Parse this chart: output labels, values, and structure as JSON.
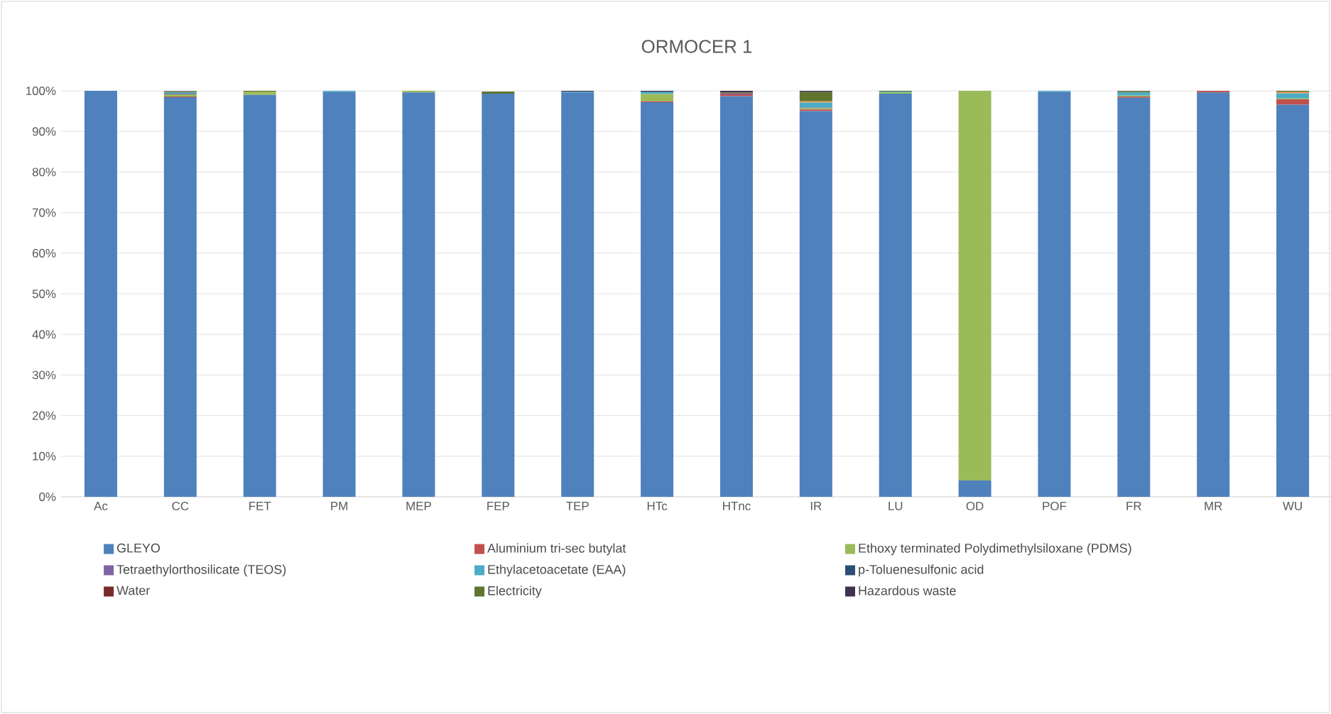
{
  "chart_data": {
    "type": "bar",
    "stacked": true,
    "title": "ORMOCER 1",
    "categories": [
      "Ac",
      "CC",
      "FET",
      "PM",
      "MEP",
      "FEP",
      "TEP",
      "HTc",
      "HTnc",
      "IR",
      "LU",
      "OD",
      "POF",
      "FR",
      "MR",
      "WU"
    ],
    "ylim": [
      0,
      100
    ],
    "yticks": [
      {
        "value": 0,
        "label": "0%"
      },
      {
        "value": 10,
        "label": "10%"
      },
      {
        "value": 20,
        "label": "20%"
      },
      {
        "value": 30,
        "label": "30%"
      },
      {
        "value": 40,
        "label": "40%"
      },
      {
        "value": 50,
        "label": "50%"
      },
      {
        "value": 60,
        "label": "60%"
      },
      {
        "value": 70,
        "label": "70%"
      },
      {
        "value": 80,
        "label": "80%"
      },
      {
        "value": 90,
        "label": "90%"
      },
      {
        "value": 100,
        "label": "100%"
      }
    ],
    "grid": "y",
    "legend": "bottom",
    "series": [
      {
        "name": "GLEYO",
        "color": "#4f81bd",
        "values": [
          100,
          98.4,
          99,
          99.7,
          99.6,
          99.3,
          99.6,
          97.2,
          98.7,
          95,
          99.3,
          4,
          99.7,
          98.3,
          99.6,
          96.6
        ]
      },
      {
        "name": "Aluminium tri-sec butylat",
        "color": "#c0504d",
        "values": [
          0,
          0.2,
          0,
          0,
          0,
          0,
          0,
          0.2,
          0.4,
          0.4,
          0,
          0,
          0,
          0.3,
          0.4,
          1.3
        ]
      },
      {
        "name": "Ethoxy terminated Polydimethylsiloxane (PDMS)",
        "color": "#9bbb59",
        "values": [
          0,
          0.5,
          0.8,
          0,
          0.4,
          0,
          0,
          1.8,
          0,
          0.3,
          0.3,
          96,
          0,
          0.2,
          0,
          0.2
        ]
      },
      {
        "name": "Tetraethylorthosilicate (TEOS)",
        "color": "#8064a2",
        "values": [
          0,
          0.2,
          0,
          0,
          0,
          0,
          0,
          0,
          0.2,
          0.2,
          0,
          0,
          0,
          0,
          0,
          0
        ]
      },
      {
        "name": "Ethylacetoacetate (EAA)",
        "color": "#4bacc6",
        "values": [
          0,
          0.3,
          0,
          0.3,
          0,
          0,
          0.2,
          0.5,
          0,
          1.2,
          0.2,
          0,
          0.3,
          0.8,
          0,
          1.3
        ]
      },
      {
        "color": "#f79646",
        "values": [
          0,
          0,
          0,
          0,
          0,
          0,
          0,
          0,
          0,
          0.3,
          0,
          0,
          0,
          0,
          0,
          0.3
        ]
      },
      {
        "name": "p-Toluenesulfonic acid",
        "color": "#2c4d75",
        "values": [
          0,
          0,
          0,
          0,
          0,
          0,
          0,
          0.1,
          0,
          0,
          0,
          0,
          0,
          0,
          0,
          0
        ]
      },
      {
        "name": "Water",
        "color": "#772c2a",
        "values": [
          0,
          0,
          0,
          0,
          0,
          0,
          0,
          0,
          0.1,
          0,
          0,
          0,
          0,
          0,
          0,
          0
        ]
      },
      {
        "name": "Electricity",
        "color": "#5f7530",
        "values": [
          0,
          0.2,
          0.2,
          0,
          0,
          0.5,
          0,
          0,
          0.2,
          2.3,
          0.2,
          0,
          0,
          0.3,
          0,
          0.3
        ]
      },
      {
        "name": "Hazardous waste",
        "color": "#403152",
        "values": [
          0,
          0.1,
          0,
          0,
          0,
          0,
          0.2,
          0.2,
          0.4,
          0.3,
          0,
          0,
          0,
          0.1,
          0,
          0
        ]
      }
    ]
  }
}
